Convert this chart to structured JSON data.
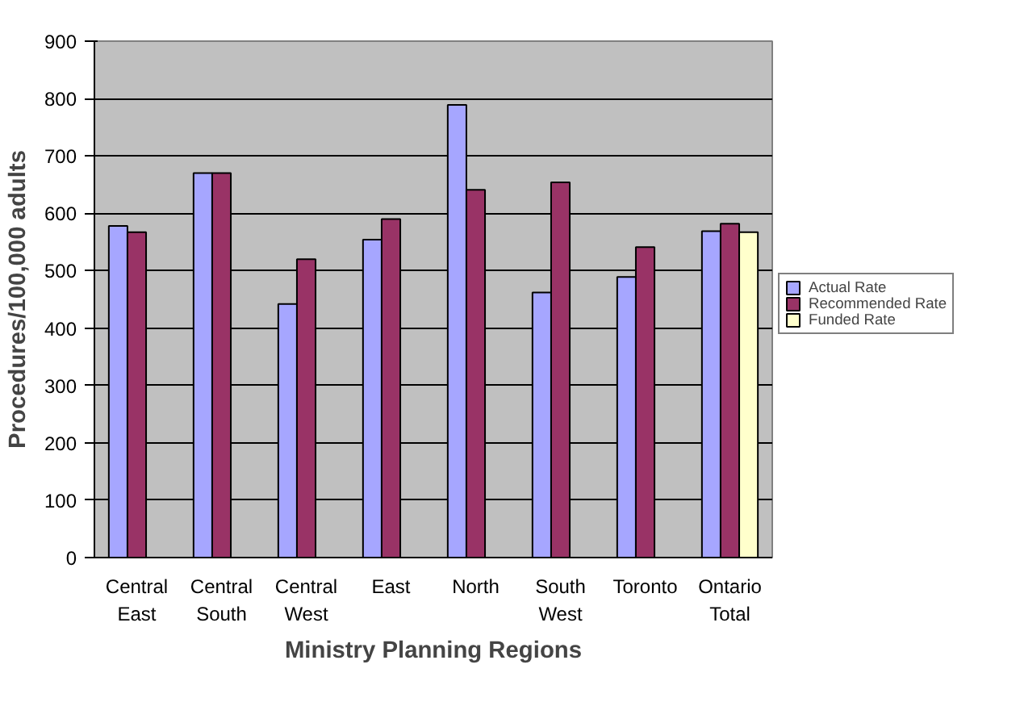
{
  "chart_data": {
    "type": "bar",
    "xlabel": "Ministry Planning Regions",
    "ylabel": "Procedures/100,000 adults",
    "categories": [
      "Central\nEast",
      "Central\nSouth",
      "Central\nWest",
      "East",
      "North",
      "South\nWest",
      "Toronto",
      "Ontario\nTotal"
    ],
    "series": [
      {
        "name": "Actual Rate",
        "color": "#a6a6ff",
        "values": [
          578,
          670,
          442,
          554,
          789,
          462,
          489,
          569
        ]
      },
      {
        "name": "Recommended Rate",
        "color": "#993366",
        "values": [
          567,
          670,
          520,
          590,
          641,
          654,
          541,
          582
        ]
      },
      {
        "name": "Funded Rate",
        "color": "#ffffcc",
        "values": [
          null,
          null,
          null,
          null,
          null,
          null,
          null,
          567
        ]
      }
    ],
    "ylim": [
      0,
      900
    ],
    "yticks": [
      0,
      100,
      200,
      300,
      400,
      500,
      600,
      700,
      800,
      900
    ],
    "grid": "y",
    "legend": "right"
  }
}
